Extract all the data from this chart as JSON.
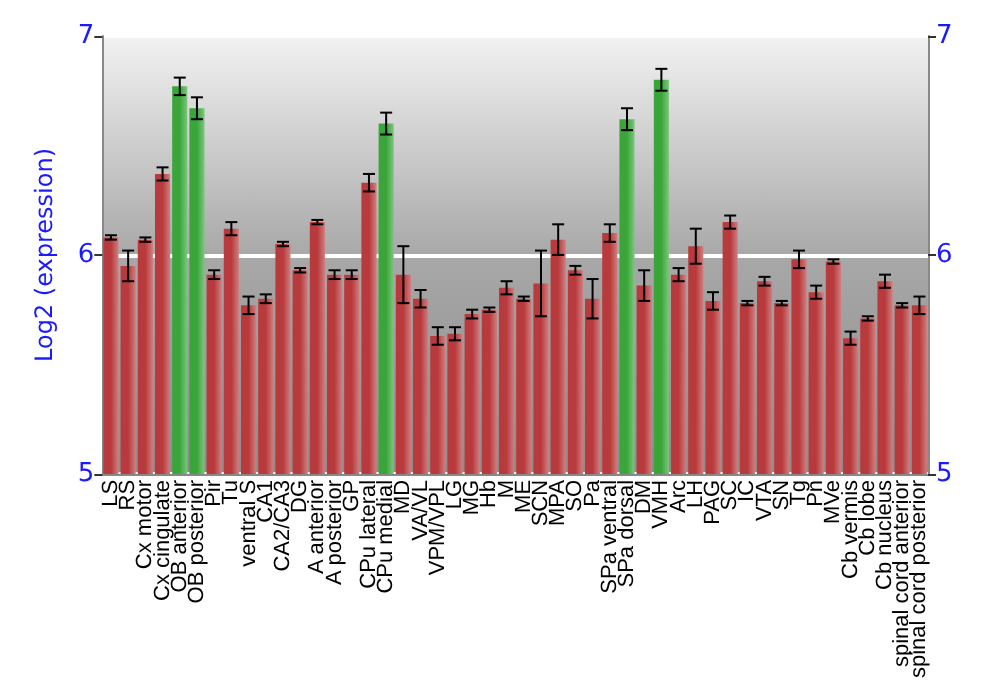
{
  "chart_data": {
    "type": "bar",
    "ylabel": "Log2 (expression)",
    "categories": [
      "LS",
      "RS",
      "Cx motor",
      "Cx cingulate",
      "OB anterior",
      "OB posterior",
      "Pir",
      "Tu",
      "ventral S",
      "CA1",
      "CA2/CA3",
      "DG",
      "A anterior",
      "A posterior",
      "GP",
      "CPu lateral",
      "CPu medial",
      "MD",
      "VA/VL",
      "VPM/VPL",
      "LG",
      "MG",
      "Hb",
      "M",
      "ME",
      "SCN",
      "MPA",
      "SO",
      "Pa",
      "SPa ventral",
      "SPa dorsal",
      "DM",
      "VMH",
      "Arc",
      "LH",
      "PAG",
      "SC",
      "IC",
      "VTA",
      "SN",
      "Tg",
      "Pn",
      "MVe",
      "Cb vermis",
      "Cb lobe",
      "Cb nucleus",
      "spinal cord anterior",
      "spinal cord posterior"
    ],
    "values": [
      6.08,
      5.95,
      6.07,
      6.37,
      6.77,
      6.67,
      5.91,
      6.12,
      5.77,
      5.8,
      6.05,
      5.93,
      6.15,
      5.91,
      5.91,
      6.33,
      6.6,
      5.91,
      5.8,
      5.63,
      5.64,
      5.73,
      5.75,
      5.85,
      5.8,
      5.87,
      6.07,
      5.93,
      5.8,
      6.1,
      6.62,
      5.86,
      6.8,
      5.91,
      6.04,
      5.79,
      6.15,
      5.78,
      5.88,
      5.78,
      5.98,
      5.83,
      5.97,
      5.62,
      5.71,
      5.88,
      5.77,
      5.77
    ],
    "errors": [
      0.01,
      0.07,
      0.01,
      0.03,
      0.04,
      0.05,
      0.02,
      0.03,
      0.04,
      0.02,
      0.01,
      0.01,
      0.01,
      0.02,
      0.02,
      0.04,
      0.05,
      0.13,
      0.04,
      0.04,
      0.03,
      0.02,
      0.01,
      0.03,
      0.01,
      0.15,
      0.07,
      0.02,
      0.09,
      0.04,
      0.05,
      0.07,
      0.05,
      0.03,
      0.08,
      0.04,
      0.03,
      0.01,
      0.02,
      0.01,
      0.04,
      0.03,
      0.01,
      0.03,
      0.01,
      0.03,
      0.01,
      0.04
    ],
    "colors": [
      "#b83a3c",
      "#b83a3c",
      "#b83a3c",
      "#b83a3c",
      "#3aa63a",
      "#3aa63a",
      "#b83a3c",
      "#b83a3c",
      "#b83a3c",
      "#b83a3c",
      "#b83a3c",
      "#b83a3c",
      "#b83a3c",
      "#b83a3c",
      "#b83a3c",
      "#b83a3c",
      "#3aa63a",
      "#b83a3c",
      "#b83a3c",
      "#b83a3c",
      "#b83a3c",
      "#b83a3c",
      "#b83a3c",
      "#b83a3c",
      "#b83a3c",
      "#b83a3c",
      "#b83a3c",
      "#b83a3c",
      "#b83a3c",
      "#b83a3c",
      "#3aa63a",
      "#b83a3c",
      "#3aa63a",
      "#b83a3c",
      "#b83a3c",
      "#b83a3c",
      "#b83a3c",
      "#b83a3c",
      "#b83a3c",
      "#b83a3c",
      "#b83a3c",
      "#b83a3c",
      "#b83a3c",
      "#b83a3c",
      "#b83a3c",
      "#b83a3c",
      "#b83a3c",
      "#b83a3c"
    ],
    "ylim": [
      5,
      7
    ],
    "yticks": [
      5,
      6,
      7
    ],
    "y2lim": [
      5,
      7
    ],
    "y2ticks": [
      5,
      6,
      7
    ],
    "grid": "y"
  }
}
